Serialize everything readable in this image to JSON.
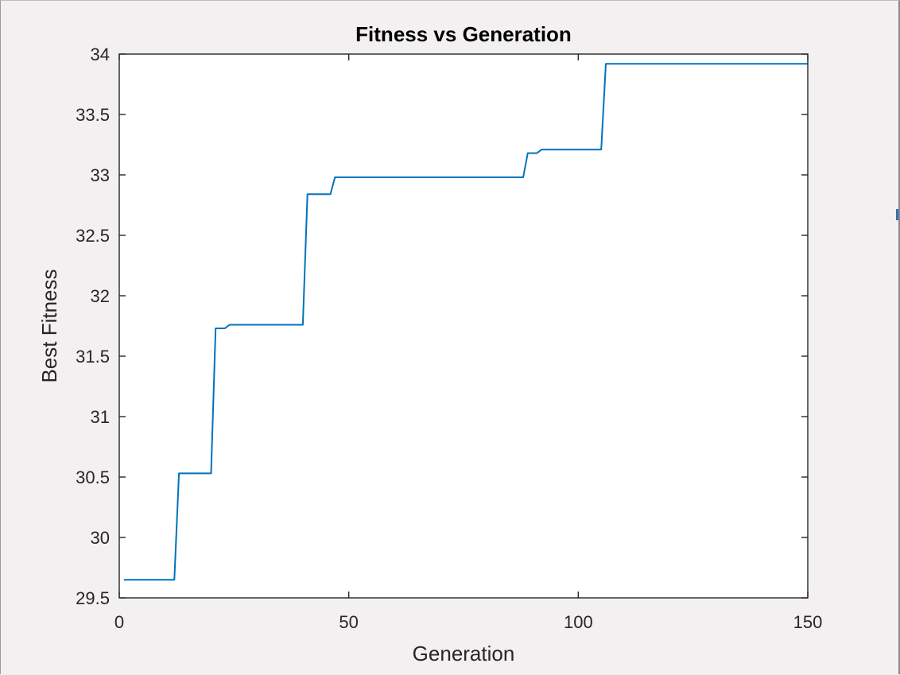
{
  "chart_data": {
    "type": "line",
    "title": "Fitness vs Generation",
    "xlabel": "Generation",
    "ylabel": "Best Fitness",
    "xlim": [
      0,
      150
    ],
    "ylim": [
      29.5,
      34
    ],
    "xticks": [
      0,
      50,
      100,
      150
    ],
    "xtick_labels": [
      "0",
      "50",
      "100",
      "150"
    ],
    "yticks": [
      29.5,
      30,
      30.5,
      31,
      31.5,
      32,
      32.5,
      33,
      33.5,
      34
    ],
    "ytick_labels": [
      "29.5",
      "30",
      "30.5",
      "31",
      "31.5",
      "32",
      "32.5",
      "33",
      "33.5",
      "34"
    ],
    "grid": false,
    "line_color": "#0072BD",
    "series": [
      {
        "x": [
          1,
          12,
          13,
          20,
          21,
          23,
          24,
          40,
          41,
          46,
          47,
          88,
          89,
          91,
          92,
          105,
          106,
          150
        ],
        "y": [
          29.65,
          29.65,
          30.53,
          30.53,
          31.73,
          31.73,
          31.76,
          31.76,
          32.84,
          32.84,
          32.98,
          32.98,
          33.18,
          33.18,
          33.21,
          33.21,
          33.92,
          33.92
        ]
      }
    ]
  }
}
